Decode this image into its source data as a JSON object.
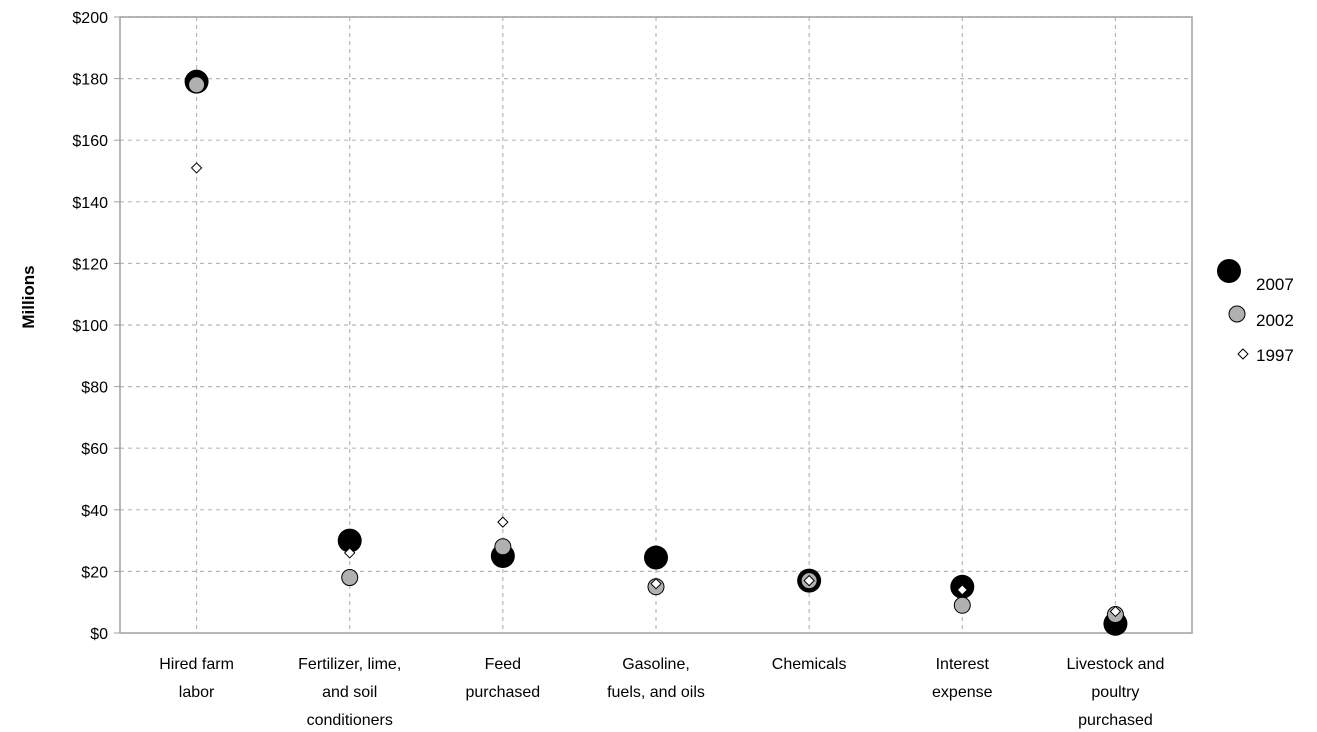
{
  "chart_data": {
    "type": "scatter",
    "title": "",
    "xlabel": "",
    "ylabel": "Millions",
    "ylim": [
      0,
      200
    ],
    "yticks": [
      0,
      20,
      40,
      60,
      80,
      100,
      120,
      140,
      160,
      180,
      200
    ],
    "ytick_labels": [
      "$0",
      "$20",
      "$40",
      "$60",
      "$80",
      "$100",
      "$120",
      "$140",
      "$160",
      "$180",
      "$200"
    ],
    "grid": true,
    "legend_position": "right",
    "categories": [
      [
        "Hired farm",
        "labor"
      ],
      [
        "Fertilizer, lime,",
        "and soil",
        "conditioners"
      ],
      [
        "Feed",
        "purchased"
      ],
      [
        "Gasoline,",
        "fuels, and oils"
      ],
      [
        "Chemicals"
      ],
      [
        "Interest",
        "expense"
      ],
      [
        "Livestock and",
        "poultry",
        "purchased"
      ]
    ],
    "series": [
      {
        "name": "2007",
        "values": [
          179,
          30,
          25,
          24.5,
          17,
          15,
          3
        ],
        "marker": "large-black-circle",
        "color": "#000000"
      },
      {
        "name": "2002",
        "values": [
          178,
          18,
          28,
          15,
          17,
          9,
          6
        ],
        "marker": "gray-circle",
        "color": "#b0b0b0"
      },
      {
        "name": "1997",
        "values": [
          151,
          26,
          36,
          16,
          17,
          14,
          7
        ],
        "marker": "small-white-diamond",
        "color": "#ffffff"
      }
    ]
  }
}
